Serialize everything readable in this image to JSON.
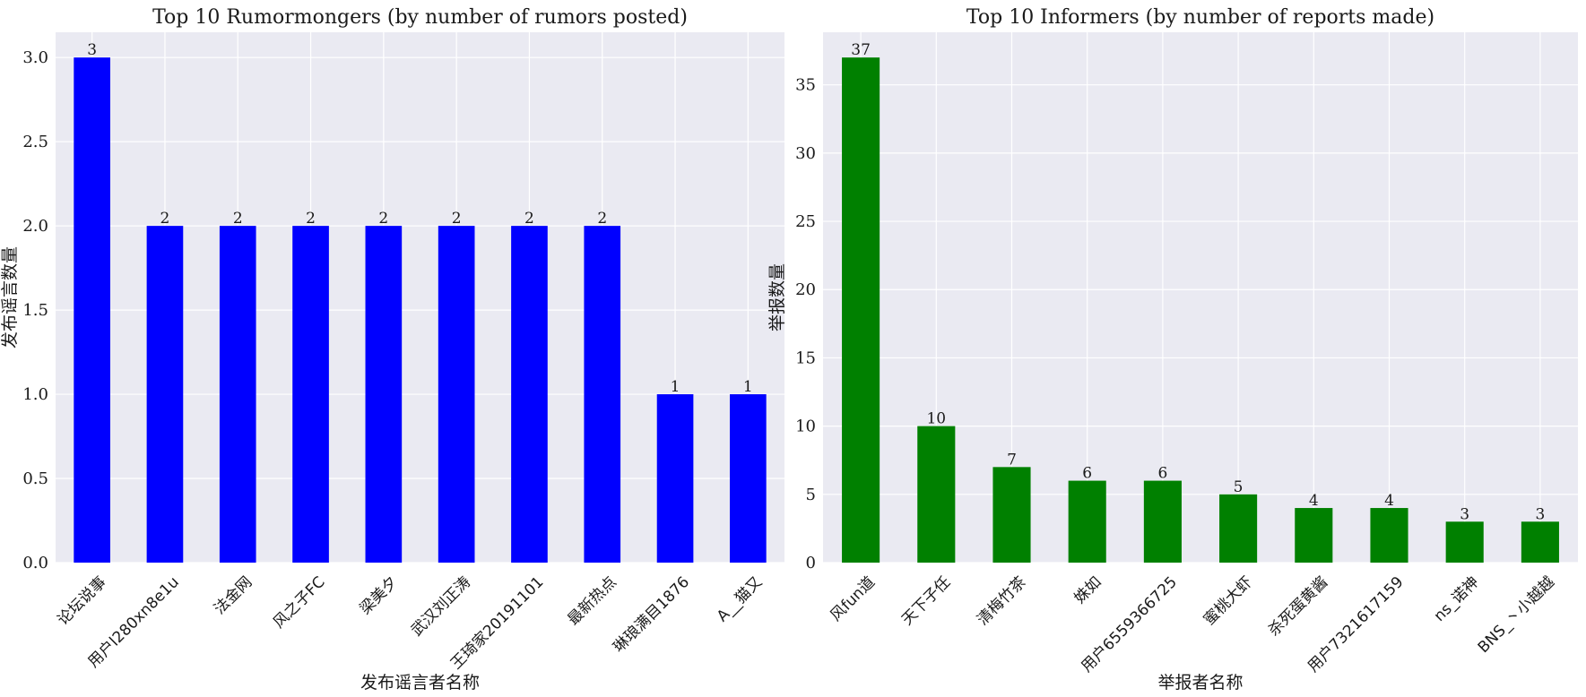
{
  "colors": {
    "plot_background": "#eaeaf2",
    "grid": "#ffffff"
  },
  "chart_data": [
    {
      "type": "bar",
      "title": "Top 10 Rumormongers (by number of rumors posted)",
      "xlabel": "发布谣言者名称",
      "ylabel": "发布谣言数量",
      "categories": [
        "论坛说事",
        "用户l280xn8e1u",
        "法金网",
        "风之子FC",
        "梁美夕",
        "武汉刘正涛",
        "王琦家20191101",
        "最新热点",
        "琳琅满目1876",
        "A__猫又"
      ],
      "values": [
        3,
        2,
        2,
        2,
        2,
        2,
        2,
        2,
        1,
        1
      ],
      "data_labels": [
        "3",
        "2",
        "2",
        "2",
        "2",
        "2",
        "2",
        "2",
        "1",
        "1"
      ],
      "yticks": [
        0,
        0.5,
        1,
        1.5,
        2,
        2.5,
        3
      ],
      "ytick_labels": [
        "0.0",
        "0.5",
        "1.0",
        "1.5",
        "2.0",
        "2.5",
        "3.0"
      ],
      "ylim": [
        0,
        3.15
      ],
      "bar_color": "#0000ff",
      "grid": true,
      "legend": "none"
    },
    {
      "type": "bar",
      "title": "Top 10 Informers (by number of reports made)",
      "xlabel": "举报者名称",
      "ylabel": "举报数量",
      "categories": [
        "风fun道",
        "天下子任",
        "清梅竹茶",
        "姝如",
        "用户6559366725",
        "蜜桃大虾",
        "杀死蛋黄酱",
        "用户7321617159",
        "ns_诺神",
        "BNS_丶小越越"
      ],
      "values": [
        37,
        10,
        7,
        6,
        6,
        5,
        4,
        4,
        3,
        3
      ],
      "data_labels": [
        "37",
        "10",
        "7",
        "6",
        "6",
        "5",
        "4",
        "4",
        "3",
        "3"
      ],
      "yticks": [
        0,
        5,
        10,
        15,
        20,
        25,
        30,
        35
      ],
      "ytick_labels": [
        "0",
        "5",
        "10",
        "15",
        "20",
        "25",
        "30",
        "35"
      ],
      "ylim": [
        0,
        38.85
      ],
      "bar_color": "#008000",
      "grid": true,
      "legend": "none"
    }
  ]
}
